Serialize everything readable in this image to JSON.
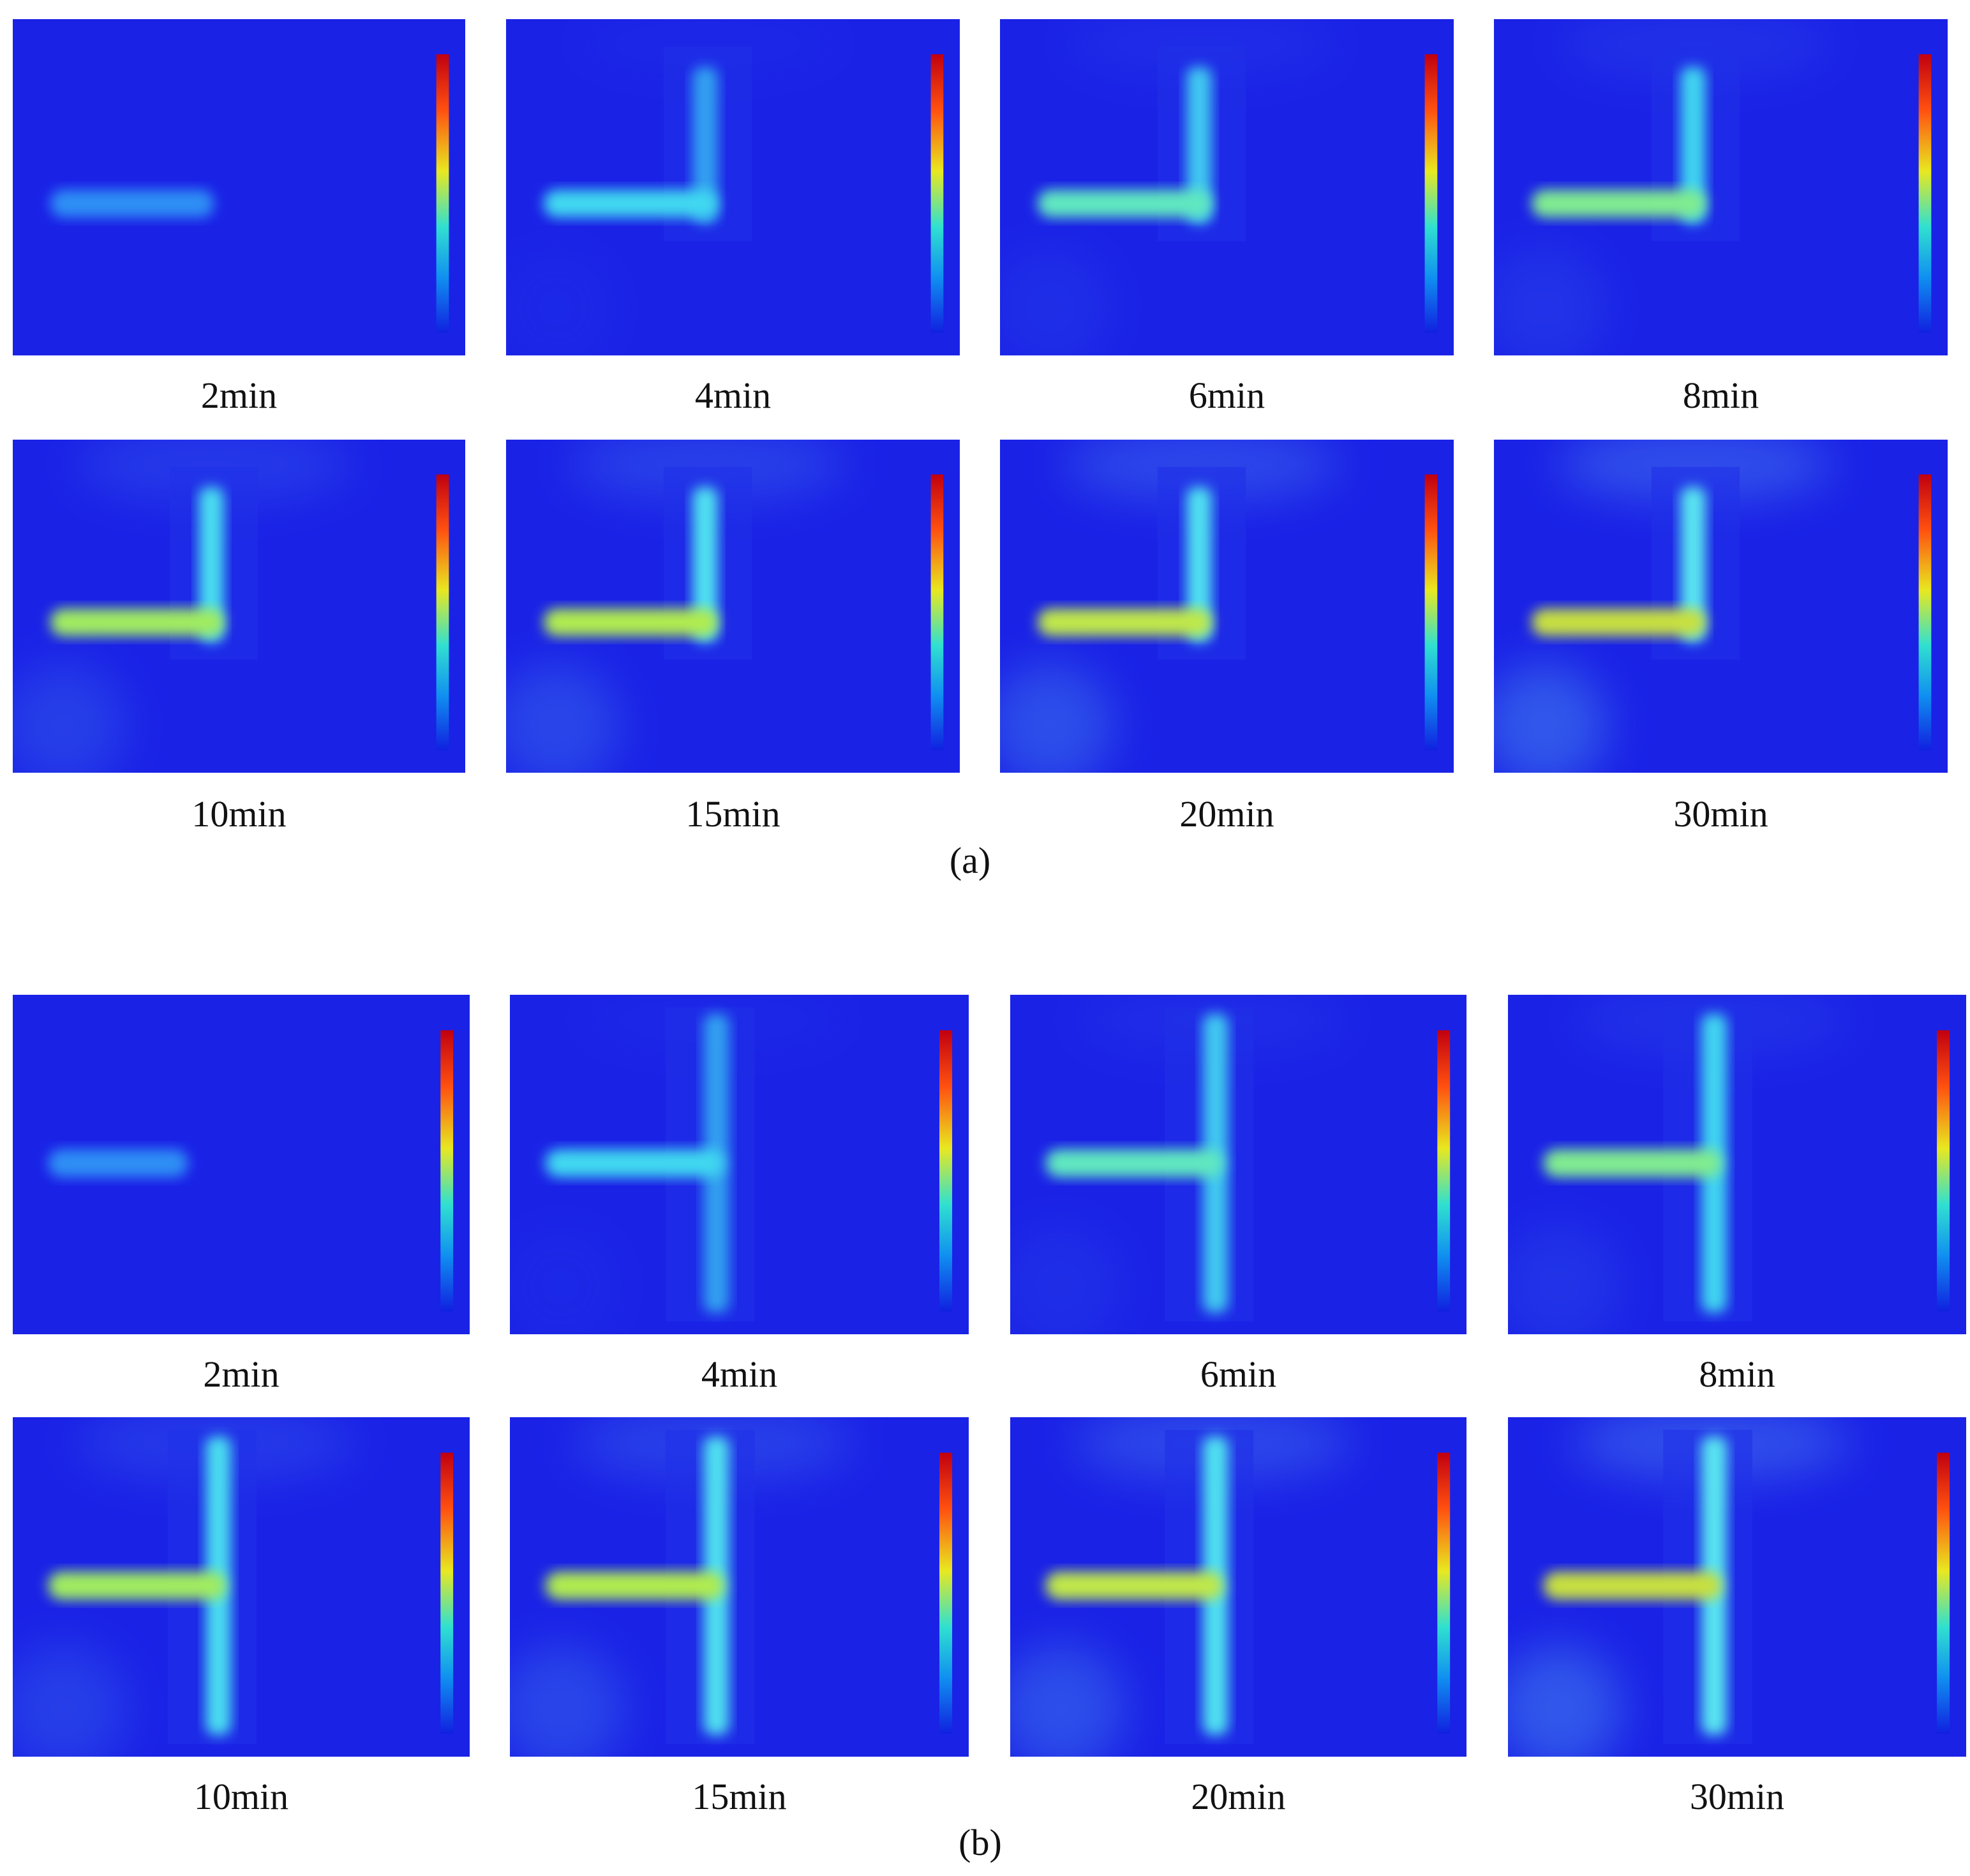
{
  "panels": [
    {
      "label": "(a)",
      "images": [
        {
          "caption": "2min"
        },
        {
          "caption": "4min"
        },
        {
          "caption": "6min"
        },
        {
          "caption": "8min"
        },
        {
          "caption": "10min"
        },
        {
          "caption": "15min"
        },
        {
          "caption": "20min"
        },
        {
          "caption": "30min"
        }
      ]
    },
    {
      "label": "(b)",
      "images": [
        {
          "caption": "2min"
        },
        {
          "caption": "4min"
        },
        {
          "caption": "6min"
        },
        {
          "caption": "8min"
        },
        {
          "caption": "10min"
        },
        {
          "caption": "15min"
        },
        {
          "caption": "20min"
        },
        {
          "caption": "30min"
        }
      ]
    }
  ]
}
